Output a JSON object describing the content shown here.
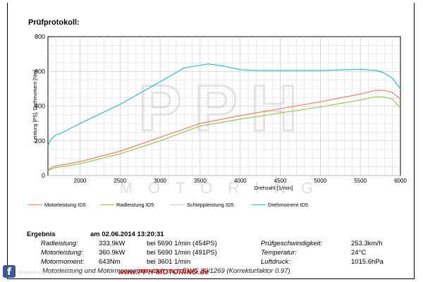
{
  "header": {
    "title": "Prüfprotokoll:"
  },
  "chart_data": {
    "type": "line",
    "xlabel": "Drehzahl [1/min]",
    "ylabel": "Leistung [PS], Drehmoment [Nm]",
    "xlim": [
      1600,
      6000
    ],
    "ylim": [
      0,
      800
    ],
    "xticks": [
      2000,
      2500,
      3000,
      3500,
      4000,
      4500,
      5000,
      5500,
      6000
    ],
    "yticks": [
      0,
      200,
      400,
      600,
      800
    ],
    "grid": true,
    "legend_position": "bottom",
    "watermark": {
      "logo": "PPH",
      "text": "MOTORING"
    },
    "series": [
      {
        "name": "Motorleistung ID5",
        "color": "#e8836a",
        "x": [
          1600,
          1650,
          1700,
          2000,
          2500,
          3000,
          3500,
          4000,
          4500,
          5000,
          5500,
          5690,
          5800,
          5900,
          6000
        ],
        "y": [
          30,
          48,
          55,
          80,
          140,
          220,
          300,
          345,
          385,
          425,
          470,
          491,
          490,
          478,
          440
        ]
      },
      {
        "name": "Radleistung ID5",
        "color": "#99c45a",
        "x": [
          1600,
          1650,
          1700,
          2000,
          2500,
          3000,
          3500,
          4000,
          4500,
          5000,
          5500,
          5690,
          5800,
          5900,
          6000
        ],
        "y": [
          25,
          40,
          46,
          68,
          125,
          200,
          285,
          325,
          360,
          395,
          435,
          454,
          452,
          440,
          390
        ]
      },
      {
        "name": "Schleppleistung ID5",
        "color": "#c8c8c8",
        "x": [
          1600,
          6000
        ],
        "y": [
          0,
          0
        ]
      },
      {
        "name": "Drehmoment ID5",
        "color": "#33b9cc",
        "x": [
          1600,
          1620,
          1650,
          1700,
          1750,
          2000,
          2500,
          3000,
          3300,
          3601,
          3800,
          4000,
          4200,
          4500,
          5000,
          5500,
          5700,
          5800,
          5900,
          6000
        ],
        "y": [
          170,
          195,
          215,
          235,
          240,
          300,
          410,
          540,
          620,
          643,
          630,
          610,
          605,
          605,
          605,
          612,
          605,
          590,
          560,
          500
        ]
      }
    ]
  },
  "results": {
    "heading": "Ergebnis",
    "date": "am 02.06.2014 13:20:31",
    "rows": [
      {
        "label": "Radleistung:",
        "value": "333.9kW",
        "detail": "bei 5690 1/min (454PS)",
        "label2": "Prüfgeschwindigkeit:",
        "value2": "253.3km/h"
      },
      {
        "label": "Motorleistung:",
        "value": "360.9kW",
        "detail": "bei 5690 1/min (491PS)",
        "label2": "Temperatur:",
        "value2": "24°C"
      },
      {
        "label": "Motormoment:",
        "value": "643Nm",
        "detail": "bei 3601 1/min",
        "label2": "Luftdruck:",
        "value2": "1015.6hPa"
      }
    ],
    "footnote": "Motorleistung und Motormoment ermittelt nach EWG 80/1269 (Korrekturfaktor 0.97)"
  },
  "watermarks": {
    "left": "facebook.com/pphmotoring",
    "right": "www.PPH-MOTORING.de"
  }
}
